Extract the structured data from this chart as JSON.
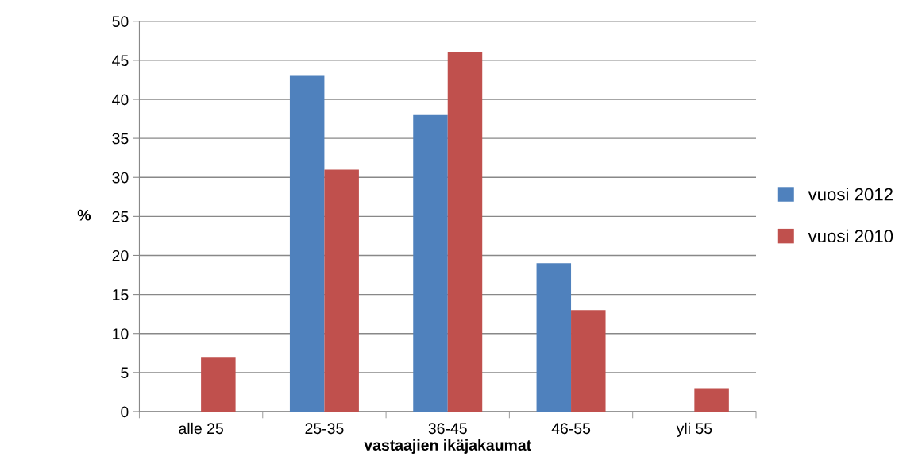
{
  "chart_data": {
    "type": "bar",
    "xlabel": "vastaajien ikäjakaumat",
    "ylabel": "%",
    "categories": [
      "alle 25",
      "25-35",
      "36-45",
      "46-55",
      "yli 55"
    ],
    "series": [
      {
        "name": "vuosi 2012",
        "color": "#4f81bd",
        "values": [
          0,
          43,
          38,
          19,
          0
        ]
      },
      {
        "name": "vuosi 2010",
        "color": "#c0504d",
        "values": [
          7,
          31,
          46,
          13,
          3
        ]
      }
    ],
    "ylim": [
      0,
      50
    ],
    "yticks": [
      0,
      5,
      10,
      15,
      20,
      25,
      30,
      35,
      40,
      45,
      50
    ],
    "grid": "y",
    "legend": "right"
  }
}
